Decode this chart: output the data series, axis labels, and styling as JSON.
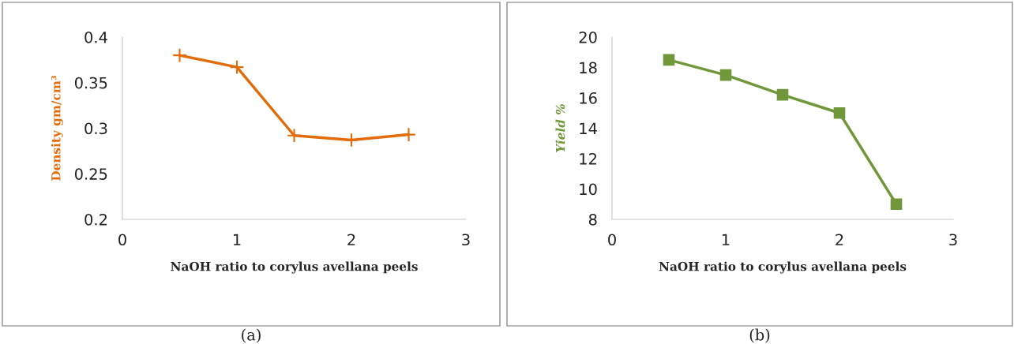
{
  "chart_data": [
    {
      "type": "line",
      "x": [
        0.5,
        1,
        1.5,
        2,
        2.5
      ],
      "xlabel": "NaOH ratio to corylus avellana peels",
      "ylabel": "Density gm/cm³",
      "xlim": [
        0,
        3
      ],
      "xticks": [
        0,
        1,
        2,
        3
      ],
      "ylim": [
        0.2,
        0.4
      ],
      "yticks": [
        0.2,
        0.25,
        0.3,
        0.35,
        0.4
      ],
      "marker": "cross",
      "grid": false,
      "legend": false,
      "series": [
        {
          "color": "#e36c0a",
          "values": [
            0.38,
            0.367,
            0.292,
            0.287,
            0.293
          ]
        }
      ],
      "annotations": [
        "(a)"
      ]
    },
    {
      "type": "line",
      "x": [
        0.5,
        1,
        1.5,
        2,
        2.5
      ],
      "xlabel": "NaOH ratio to corylus avellana peels",
      "ylabel": "Yield %",
      "xlim": [
        0,
        3
      ],
      "xticks": [
        0,
        1,
        2,
        3
      ],
      "ylim": [
        8,
        20
      ],
      "yticks": [
        8,
        10,
        12,
        14,
        16,
        18,
        20
      ],
      "marker": "square",
      "grid": false,
      "legend": false,
      "series": [
        {
          "color": "#70973a",
          "values": [
            18.5,
            17.5,
            16.2,
            15.0,
            9.0
          ]
        }
      ],
      "annotations": [
        "(b)"
      ]
    }
  ]
}
